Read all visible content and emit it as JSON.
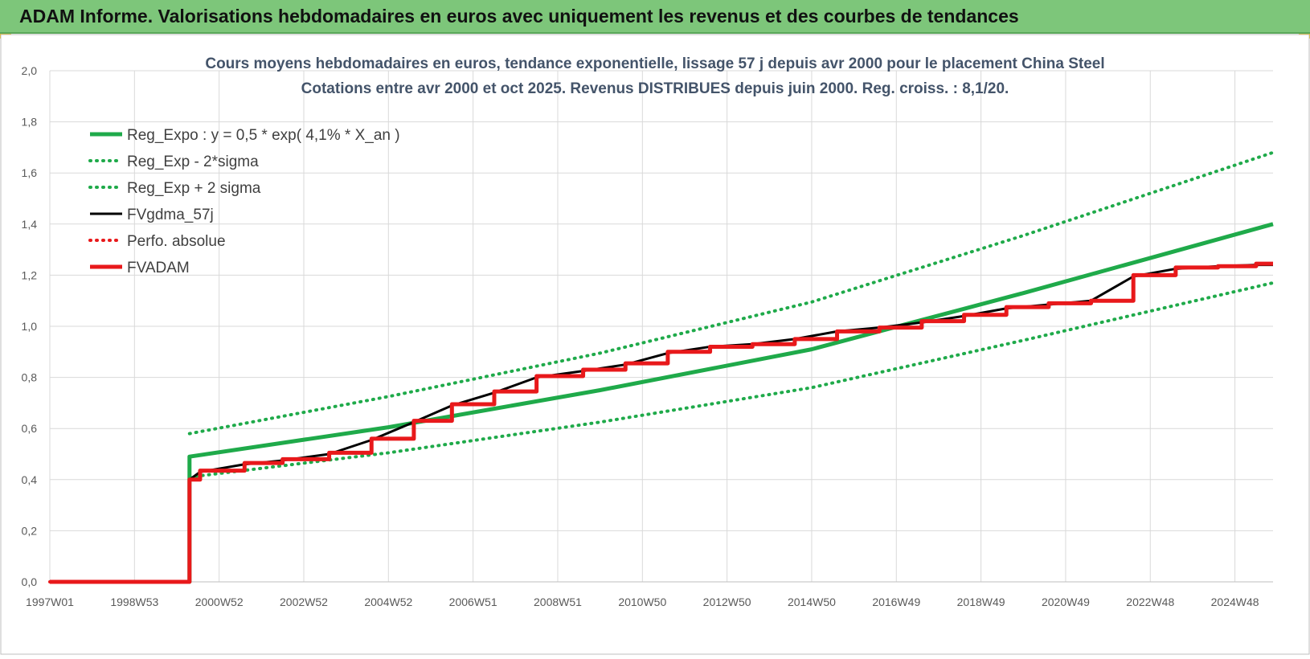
{
  "header": {
    "title": "ADAM Informe. Valorisations hebdomadaires en euros avec uniquement les revenus et des courbes de tendances"
  },
  "colors": {
    "banner": "#7dc67a",
    "reg_expo": "#1faa4a",
    "fvgdma": "#000000",
    "fvadam": "#e8191b",
    "perfo": "#e8191b",
    "grid": "#d9d9d9"
  },
  "chart_data": {
    "type": "line",
    "title": "Cours moyens hebdomadaires en euros, tendance exponentielle, lissage 57 j depuis avr 2000 pour le placement China Steel",
    "subtitle": "Cotations entre avr 2000 et oct 2025.  Revenus DISTRIBUES depuis juin 2000.  Reg. croiss. : 8,1/20.",
    "xlabel": "",
    "ylabel": "",
    "x_tick_labels": [
      "1997W01",
      "1998W53",
      "2000W52",
      "2002W52",
      "2004W52",
      "2006W51",
      "2008W51",
      "2010W50",
      "2012W50",
      "2014W50",
      "2016W49",
      "2018W49",
      "2020W49",
      "2022W48",
      "2024W48"
    ],
    "x_range": [
      1997.0,
      2025.9
    ],
    "ylim": [
      0,
      2
    ],
    "y_ticks": [
      "0,0",
      "0,2",
      "0,4",
      "0,6",
      "0,8",
      "1,0",
      "1,2",
      "1,4",
      "1,6",
      "1,8",
      "2,0"
    ],
    "grid": true,
    "legend_position": "top-left",
    "series": [
      {
        "name": "Reg_Expo : y = 0,5 * exp( 4,1% *  X_an )",
        "style": "solid-thick",
        "color": "#1faa4a",
        "x": [
          1997.0,
          2000.3,
          2000.3,
          2005.0,
          2010.0,
          2015.0,
          2020.0,
          2025.9
        ],
        "y": [
          0,
          0,
          0.49,
          0.605,
          0.75,
          0.91,
          1.13,
          1.4
        ]
      },
      {
        "name": "Reg_Exp - 2*sigma",
        "style": "dotted",
        "color": "#1faa4a",
        "x": [
          2000.3,
          2005.0,
          2010.0,
          2015.0,
          2020.0,
          2025.9
        ],
        "y": [
          0.41,
          0.505,
          0.625,
          0.76,
          0.945,
          1.17
        ]
      },
      {
        "name": "Reg_Exp + 2 sigma",
        "style": "dotted",
        "color": "#1faa4a",
        "x": [
          2000.3,
          2005.0,
          2010.0,
          2015.0,
          2020.0,
          2025.9
        ],
        "y": [
          0.58,
          0.725,
          0.895,
          1.095,
          1.355,
          1.68
        ]
      },
      {
        "name": "FVgdma_57j",
        "style": "solid-thin",
        "color": "#000000",
        "x": [
          1997.0,
          2000.3,
          2000.3,
          2000.55,
          2001.6,
          2002.5,
          2003.6,
          2004.6,
          2005.6,
          2006.5,
          2007.5,
          2008.5,
          2009.6,
          2010.6,
          2011.6,
          2012.6,
          2013.6,
          2014.6,
          2015.6,
          2016.6,
          2017.6,
          2018.6,
          2019.6,
          2020.6,
          2021.6,
          2022.6,
          2023.6,
          2024.6,
          2025.5,
          2025.9
        ],
        "y": [
          0,
          0,
          0.4,
          0.43,
          0.46,
          0.475,
          0.5,
          0.555,
          0.625,
          0.69,
          0.74,
          0.8,
          0.825,
          0.85,
          0.895,
          0.92,
          0.93,
          0.95,
          0.98,
          0.995,
          1.015,
          1.04,
          1.07,
          1.085,
          1.1,
          1.195,
          1.225,
          1.235,
          1.24,
          1.24
        ]
      },
      {
        "name": "Perfo. absolue",
        "style": "dotted",
        "color": "#e8191b",
        "x": [
          1997.0,
          2000.3
        ],
        "y": [
          0,
          0
        ]
      },
      {
        "name": "FVADAM",
        "style": "step-thick",
        "color": "#e8191b",
        "x": [
          1997.0,
          2000.3,
          2000.3,
          2000.55,
          2001.6,
          2002.5,
          2003.6,
          2004.6,
          2005.6,
          2006.5,
          2007.5,
          2008.5,
          2009.6,
          2010.6,
          2011.6,
          2012.6,
          2013.6,
          2014.6,
          2015.6,
          2016.6,
          2017.6,
          2018.6,
          2019.6,
          2020.6,
          2021.6,
          2022.6,
          2023.6,
          2024.6,
          2025.5,
          2025.9
        ],
        "y": [
          0,
          0,
          0.4,
          0.435,
          0.465,
          0.48,
          0.505,
          0.56,
          0.63,
          0.695,
          0.745,
          0.805,
          0.83,
          0.855,
          0.9,
          0.92,
          0.93,
          0.95,
          0.98,
          0.995,
          1.02,
          1.045,
          1.075,
          1.09,
          1.1,
          1.2,
          1.23,
          1.235,
          1.245,
          1.245
        ]
      }
    ]
  }
}
